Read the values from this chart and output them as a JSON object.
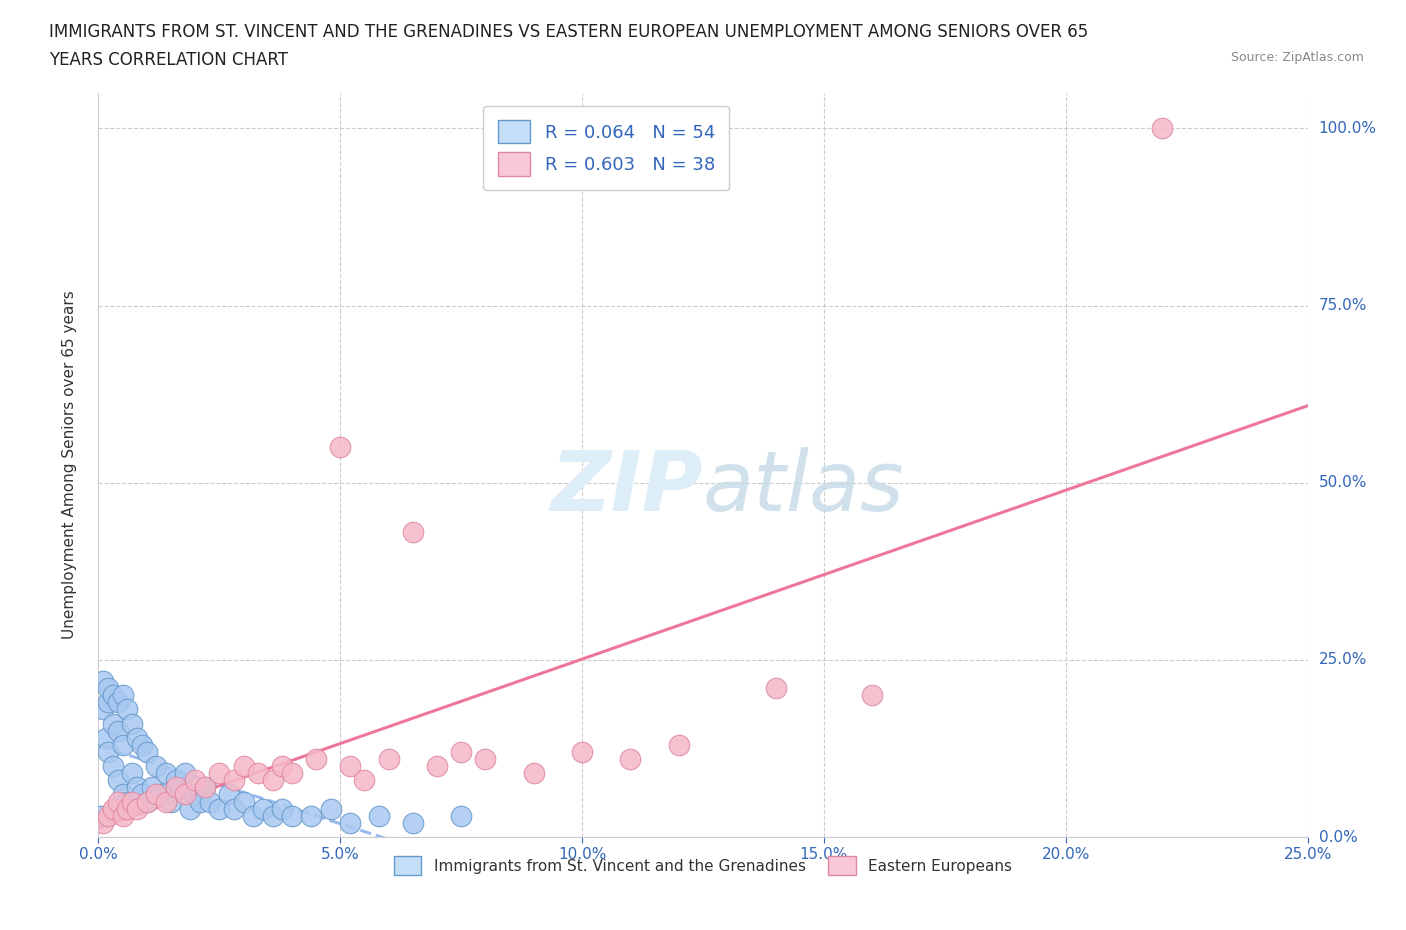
{
  "title_line1": "IMMIGRANTS FROM ST. VINCENT AND THE GRENADINES VS EASTERN EUROPEAN UNEMPLOYMENT AMONG SENIORS OVER 65",
  "title_line2": "YEARS CORRELATION CHART",
  "source_text": "Source: ZipAtlas.com",
  "ylabel": "Unemployment Among Seniors over 65 years",
  "xlim": [
    0,
    0.25
  ],
  "ylim": [
    0,
    1.05
  ],
  "xtick_labels": [
    "0.0%",
    "5.0%",
    "10.0%",
    "15.0%",
    "20.0%",
    "25.0%"
  ],
  "ytick_labels": [
    "0.0%",
    "25.0%",
    "50.0%",
    "75.0%",
    "100.0%"
  ],
  "ytick_vals": [
    0.0,
    0.25,
    0.5,
    0.75,
    1.0
  ],
  "xtick_vals": [
    0.0,
    0.05,
    0.1,
    0.15,
    0.2,
    0.25
  ],
  "blue_color": "#a8c8f0",
  "blue_edge_color": "#6699cc",
  "pink_color": "#f5b8c8",
  "pink_edge_color": "#e088a0",
  "blue_line_color": "#99bbee",
  "pink_line_color": "#ee7799",
  "legend_blue_color": "#c5dff8",
  "legend_pink_color": "#f8c8d8",
  "R_blue": 0.064,
  "N_blue": 54,
  "R_pink": 0.603,
  "N_pink": 38,
  "watermark_color": "#ddeef8",
  "grid_color": "#cccccc",
  "blue_scatter_x": [
    0.0005,
    0.001,
    0.001,
    0.0015,
    0.002,
    0.002,
    0.002,
    0.003,
    0.003,
    0.003,
    0.004,
    0.004,
    0.004,
    0.005,
    0.005,
    0.005,
    0.006,
    0.006,
    0.007,
    0.007,
    0.008,
    0.008,
    0.009,
    0.009,
    0.01,
    0.01,
    0.011,
    0.012,
    0.013,
    0.014,
    0.015,
    0.016,
    0.017,
    0.018,
    0.019,
    0.02,
    0.021,
    0.022,
    0.023,
    0.025,
    0.027,
    0.028,
    0.03,
    0.032,
    0.034,
    0.036,
    0.038,
    0.04,
    0.044,
    0.048,
    0.052,
    0.058,
    0.065,
    0.075
  ],
  "blue_scatter_y": [
    0.03,
    0.18,
    0.22,
    0.14,
    0.12,
    0.19,
    0.21,
    0.1,
    0.16,
    0.2,
    0.08,
    0.15,
    0.19,
    0.06,
    0.13,
    0.2,
    0.05,
    0.18,
    0.09,
    0.16,
    0.07,
    0.14,
    0.06,
    0.13,
    0.05,
    0.12,
    0.07,
    0.1,
    0.06,
    0.09,
    0.05,
    0.08,
    0.07,
    0.09,
    0.04,
    0.06,
    0.05,
    0.07,
    0.05,
    0.04,
    0.06,
    0.04,
    0.05,
    0.03,
    0.04,
    0.03,
    0.04,
    0.03,
    0.03,
    0.04,
    0.02,
    0.03,
    0.02,
    0.03
  ],
  "pink_scatter_x": [
    0.001,
    0.002,
    0.003,
    0.004,
    0.005,
    0.006,
    0.007,
    0.008,
    0.01,
    0.012,
    0.014,
    0.016,
    0.018,
    0.02,
    0.022,
    0.025,
    0.028,
    0.03,
    0.033,
    0.036,
    0.038,
    0.04,
    0.045,
    0.05,
    0.052,
    0.055,
    0.06,
    0.065,
    0.07,
    0.075,
    0.08,
    0.09,
    0.1,
    0.11,
    0.12,
    0.14,
    0.16,
    0.22
  ],
  "pink_scatter_y": [
    0.02,
    0.03,
    0.04,
    0.05,
    0.03,
    0.04,
    0.05,
    0.04,
    0.05,
    0.06,
    0.05,
    0.07,
    0.06,
    0.08,
    0.07,
    0.09,
    0.08,
    0.1,
    0.09,
    0.08,
    0.1,
    0.09,
    0.11,
    0.55,
    0.1,
    0.08,
    0.11,
    0.43,
    0.1,
    0.12,
    0.11,
    0.09,
    0.12,
    0.11,
    0.13,
    0.21,
    0.2,
    1.0
  ],
  "title_fontsize": 12,
  "axis_label_fontsize": 11,
  "tick_fontsize": 11,
  "legend_fontsize": 13
}
